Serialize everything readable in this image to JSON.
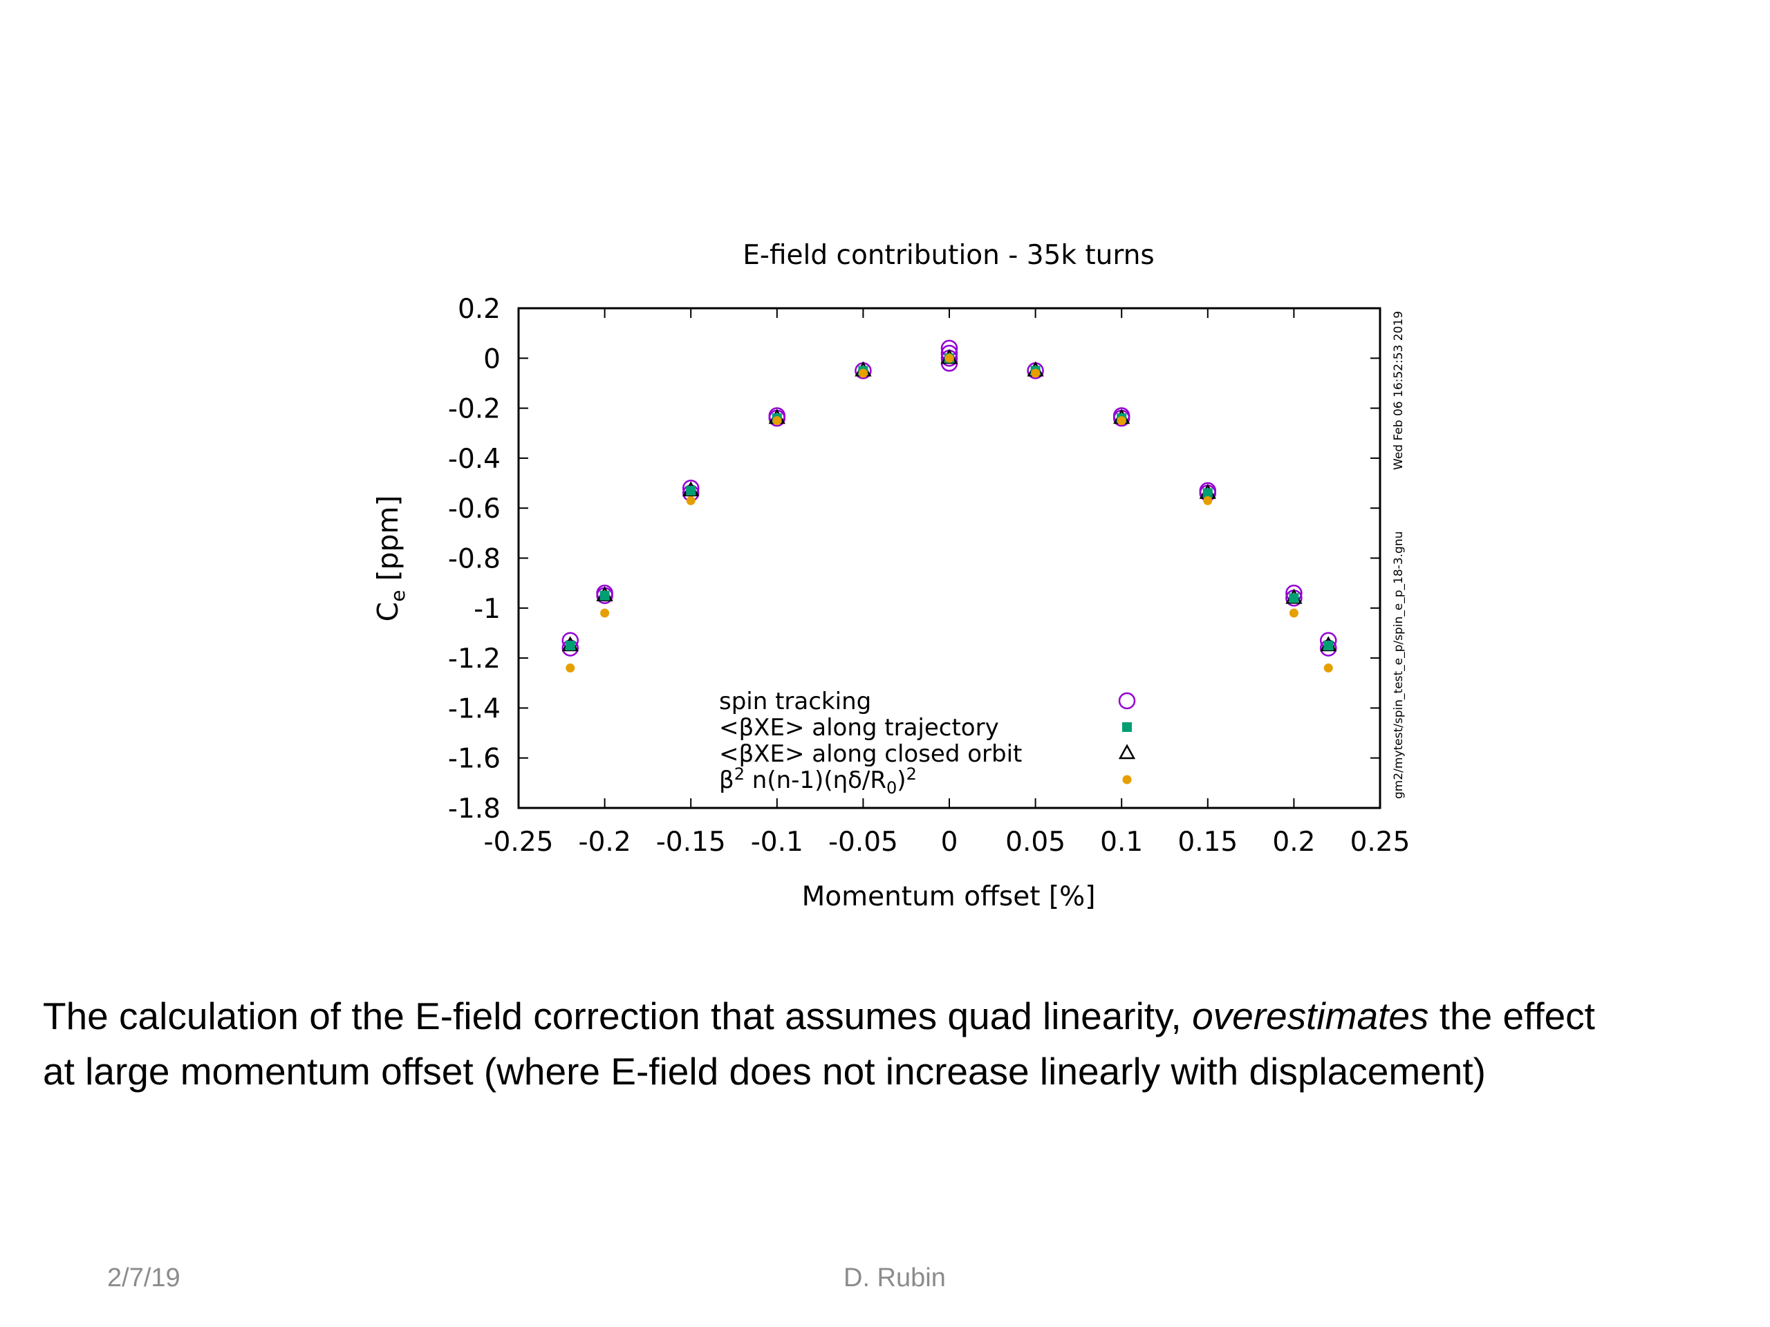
{
  "chart_data": {
    "type": "scatter",
    "title": "E-field contribution - 35k turns",
    "xlabel": "Momentum offset [%]",
    "ylabel_main": "C",
    "ylabel_sub": "e",
    "ylabel_rest": " [ppm]",
    "xlim": [
      -0.25,
      0.25
    ],
    "ylim": [
      -1.8,
      0.2
    ],
    "xticks": [
      -0.25,
      -0.2,
      -0.15,
      -0.1,
      -0.05,
      0,
      0.05,
      0.1,
      0.15,
      0.2,
      0.25
    ],
    "xtick_labels": [
      "-0.25",
      "-0.2",
      "-0.15",
      "-0.1",
      "-0.05",
      "0",
      "0.05",
      "0.1",
      "0.15",
      "0.2",
      "0.25"
    ],
    "yticks": [
      0.2,
      0,
      -0.2,
      -0.4,
      -0.6,
      -0.8,
      -1,
      -1.2,
      -1.4,
      -1.6,
      -1.8
    ],
    "ytick_labels": [
      "0.2",
      "0",
      "-0.2",
      "-0.4",
      "-0.6",
      "-0.8",
      "-1",
      "-1.2",
      "-1.4",
      "-1.6",
      "-1.8"
    ],
    "grid": false,
    "legend_position": "bottom-center",
    "side_label_date": "Wed Feb 06 16:52:53 2019",
    "side_label_file": "gm2/mytest/spin_test_e_p/spin_e_p_18-3.gnu",
    "series": [
      {
        "name": "spin tracking",
        "marker": "open-circle",
        "color": "#9400d3",
        "points": [
          [
            -0.22,
            -1.13
          ],
          [
            -0.22,
            -1.16
          ],
          [
            -0.2,
            -0.94
          ],
          [
            -0.2,
            -0.95
          ],
          [
            -0.15,
            -0.52
          ],
          [
            -0.15,
            -0.54
          ],
          [
            -0.1,
            -0.23
          ],
          [
            -0.1,
            -0.24
          ],
          [
            -0.05,
            -0.05
          ],
          [
            0,
            0.04
          ],
          [
            0,
            0.02
          ],
          [
            0,
            0.0
          ],
          [
            0,
            -0.02
          ],
          [
            0.05,
            -0.05
          ],
          [
            0.1,
            -0.23
          ],
          [
            0.1,
            -0.24
          ],
          [
            0.15,
            -0.53
          ],
          [
            0.15,
            -0.54
          ],
          [
            0.2,
            -0.94
          ],
          [
            0.2,
            -0.96
          ],
          [
            0.22,
            -1.13
          ],
          [
            0.22,
            -1.16
          ]
        ]
      },
      {
        "name": "<βXE> along trajectory",
        "marker": "filled-square",
        "color": "#009e73",
        "points": [
          [
            -0.22,
            -1.15
          ],
          [
            -0.2,
            -0.95
          ],
          [
            -0.15,
            -0.53
          ],
          [
            -0.1,
            -0.24
          ],
          [
            -0.05,
            -0.05
          ],
          [
            0,
            0.0
          ],
          [
            0.05,
            -0.05
          ],
          [
            0.1,
            -0.24
          ],
          [
            0.15,
            -0.54
          ],
          [
            0.2,
            -0.96
          ],
          [
            0.22,
            -1.15
          ]
        ]
      },
      {
        "name": "<βXE> along closed orbit",
        "marker": "open-triangle",
        "color": "#000000",
        "points": [
          [
            -0.22,
            -1.15
          ],
          [
            -0.2,
            -0.95
          ],
          [
            -0.15,
            -0.53
          ],
          [
            -0.1,
            -0.24
          ],
          [
            -0.05,
            -0.05
          ],
          [
            0,
            0.0
          ],
          [
            0.05,
            -0.05
          ],
          [
            0.1,
            -0.24
          ],
          [
            0.15,
            -0.54
          ],
          [
            0.2,
            -0.96
          ],
          [
            0.22,
            -1.15
          ]
        ]
      },
      {
        "name_parts": [
          "β",
          "2",
          " n(n-1)(ηδ/R",
          "0",
          ")",
          "2"
        ],
        "marker": "filled-circle",
        "color": "#e69f00",
        "points": [
          [
            -0.22,
            -1.24
          ],
          [
            -0.2,
            -1.02
          ],
          [
            -0.15,
            -0.57
          ],
          [
            -0.1,
            -0.25
          ],
          [
            -0.05,
            -0.06
          ],
          [
            0,
            0.0
          ],
          [
            0.05,
            -0.06
          ],
          [
            0.1,
            -0.25
          ],
          [
            0.15,
            -0.57
          ],
          [
            0.2,
            -1.02
          ],
          [
            0.22,
            -1.24
          ]
        ]
      }
    ]
  },
  "caption": {
    "line1_before": "The calculation of the E-field correction that assumes quad linearity, ",
    "line1_emphasis": "overestimates",
    "line1_after": " the effect",
    "line2": "at large momentum offset (where E-field does not increase linearly with displacement)"
  },
  "footer": {
    "date": "2/7/19",
    "author": "D. Rubin"
  }
}
